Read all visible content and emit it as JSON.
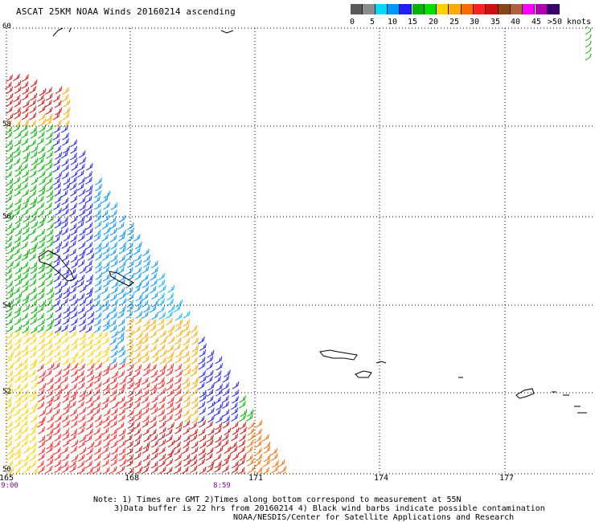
{
  "title": "ASCAT 25KM NOAA Winds 20160214 ascending",
  "scale": {
    "colors": [
      "#5a5a5a",
      "#8c8c8c",
      "#00d8ff",
      "#0096ff",
      "#2020ff",
      "#00b400",
      "#00e000",
      "#ffd000",
      "#ffaa00",
      "#ff6a00",
      "#ff2020",
      "#d01010",
      "#8b4513",
      "#b06040",
      "#ff00ff",
      "#b000b0",
      "#3a0070"
    ],
    "labels": [
      "0",
      "5",
      "10",
      "15",
      "20",
      "25",
      "30",
      "35",
      "40",
      "45",
      ">50 knots"
    ]
  },
  "map": {
    "lat_labels": [
      "60",
      "58",
      "56",
      "54",
      "52",
      "50"
    ],
    "lon_labels": [
      "165",
      "168",
      "171",
      "174",
      "177"
    ],
    "time_labels": [
      "9:00",
      "8:59"
    ]
  },
  "notes": [
    "Note: 1) Times are GMT 2)Times along bottom correspond to measurement at 55N",
    "3)Data buffer is 22 hrs from 20160214 4) Black wind barbs indicate possible contamination",
    "NOAA/NESDIS/Center for Satellite Applications and Research"
  ]
}
